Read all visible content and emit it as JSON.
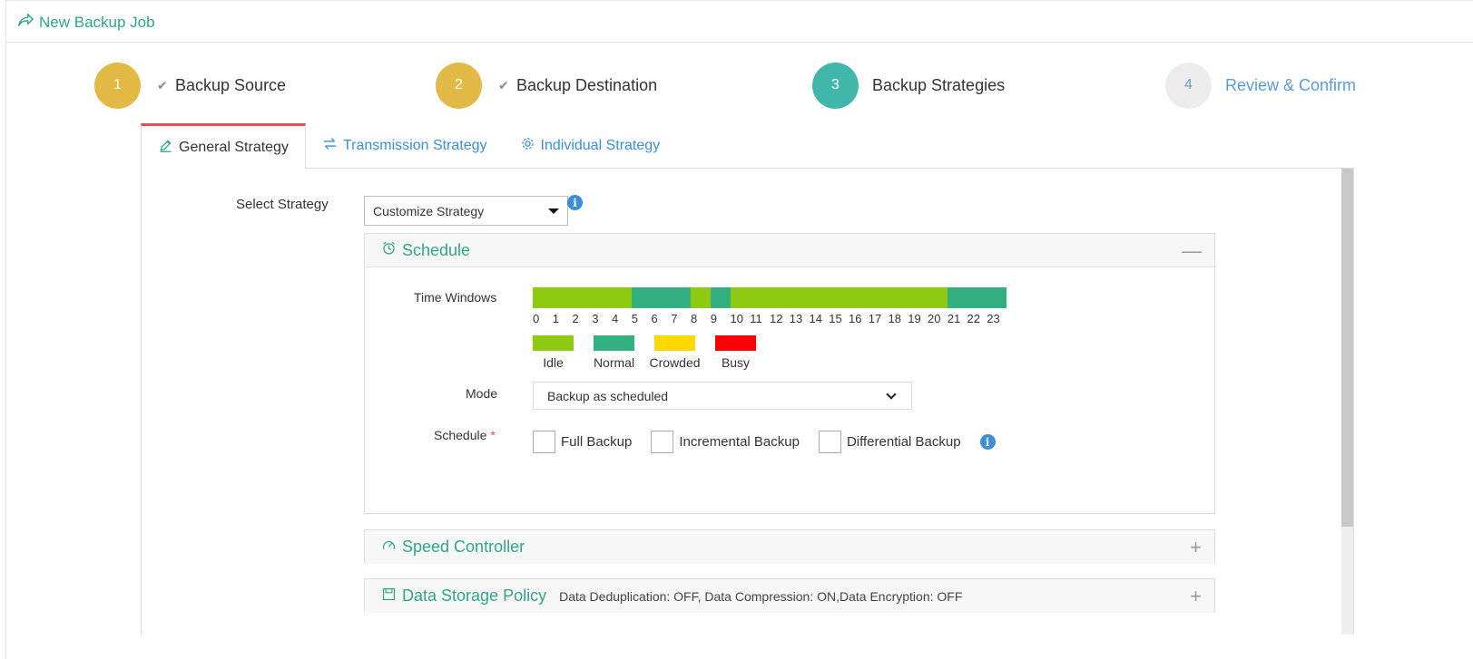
{
  "header": {
    "title": "New Backup Job",
    "icon": "share-arrow-icon",
    "accent": "#2fa58a"
  },
  "steps": [
    {
      "num": "1",
      "label": "Backup Source",
      "state": "done"
    },
    {
      "num": "2",
      "label": "Backup Destination",
      "state": "done"
    },
    {
      "num": "3",
      "label": "Backup Strategies",
      "state": "active"
    },
    {
      "num": "4",
      "label": "Review & Confirm",
      "state": "todo"
    }
  ],
  "tabs": [
    {
      "label": "General Strategy",
      "icon": "edit-icon",
      "active": true
    },
    {
      "label": "Transmission Strategy",
      "icon": "transfer-icon",
      "active": false
    },
    {
      "label": "Individual Strategy",
      "icon": "gear-icon",
      "active": false
    }
  ],
  "strategy": {
    "label": "Select Strategy",
    "value": "Customize Strategy"
  },
  "schedule": {
    "title": "Schedule",
    "toggle": "—",
    "time_windows_label": "Time Windows",
    "hours": [
      "0",
      "1",
      "2",
      "3",
      "4",
      "5",
      "6",
      "7",
      "8",
      "9",
      "10",
      "11",
      "12",
      "13",
      "14",
      "15",
      "16",
      "17",
      "18",
      "19",
      "20",
      "21",
      "22",
      "23"
    ],
    "hour_states": [
      "idle",
      "idle",
      "idle",
      "idle",
      "idle",
      "normal",
      "normal",
      "normal",
      "idle",
      "normal",
      "idle",
      "idle",
      "idle",
      "idle",
      "idle",
      "idle",
      "idle",
      "idle",
      "idle",
      "idle",
      "idle",
      "normal",
      "normal",
      "normal"
    ],
    "legend": [
      {
        "key": "idle",
        "label": "Idle",
        "color": "#8fca12"
      },
      {
        "key": "normal",
        "label": "Normal",
        "color": "#33b07f"
      },
      {
        "key": "crowded",
        "label": "Crowded",
        "color": "#ffd800"
      },
      {
        "key": "busy",
        "label": "Busy",
        "color": "#ff0000"
      }
    ],
    "mode_label": "Mode",
    "mode_value": "Backup as scheduled",
    "schedule_label": "Schedule",
    "required_mark": "*",
    "options": [
      "Full Backup",
      "Incremental Backup",
      "Differential Backup"
    ]
  },
  "speed": {
    "title": "Speed Controller",
    "toggle": "+"
  },
  "storage": {
    "title": "Data Storage Policy",
    "summary": "Data Deduplication: OFF, Data Compression: ON,Data Encryption: OFF",
    "toggle": "+"
  }
}
